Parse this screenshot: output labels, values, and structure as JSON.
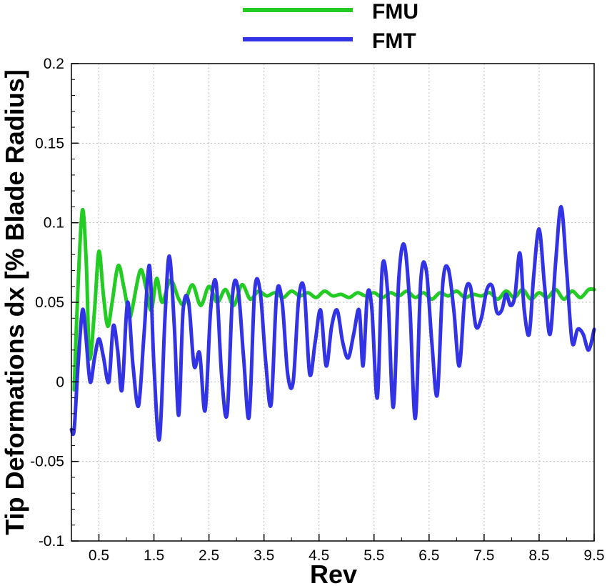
{
  "chart_data": {
    "type": "line",
    "xlabel": "Rev",
    "ylabel": "Tip Deformations dx [% Blade Radius]",
    "xlim": [
      0,
      9.5
    ],
    "ylim": [
      -0.1,
      0.2
    ],
    "x_ticks": [
      0.5,
      1.5,
      2.5,
      3.5,
      4.5,
      5.5,
      6.5,
      7.5,
      8.5,
      9.5
    ],
    "x_tick_labels": [
      "0.5",
      "1.5",
      "2.5",
      "3.5",
      "4.5",
      "5.5",
      "6.5",
      "7.5",
      "8.5",
      "9.5"
    ],
    "y_ticks": [
      -0.1,
      -0.05,
      0,
      0.05,
      0.1,
      0.15,
      0.2
    ],
    "y_tick_labels": [
      "-0.1",
      "-0.05",
      "0",
      "0.05",
      "0.1",
      "0.15",
      "0.2"
    ],
    "grid": "dotted",
    "legend_position": "top-center",
    "series": [
      {
        "name": "FMU",
        "color": "#22cc22",
        "x": [
          0.05,
          0.12,
          0.2,
          0.27,
          0.33,
          0.42,
          0.5,
          0.58,
          0.66,
          0.74,
          0.85,
          0.95,
          1.05,
          1.1,
          1.25,
          1.35,
          1.45,
          1.55,
          1.65,
          1.8,
          1.95,
          2.05,
          2.2,
          2.35,
          2.5,
          2.65,
          2.8,
          2.95,
          3.1,
          3.25,
          3.4,
          3.55,
          3.7,
          3.85,
          4.0,
          4.15,
          4.3,
          4.45,
          4.6,
          4.75,
          4.9,
          5.05,
          5.2,
          5.35,
          5.5,
          5.65,
          5.8,
          5.95,
          6.1,
          6.25,
          6.4,
          6.55,
          6.7,
          6.85,
          7.0,
          7.15,
          7.3,
          7.45,
          7.6,
          7.75,
          7.9,
          8.05,
          8.2,
          8.35,
          8.5,
          8.65,
          8.8,
          8.95,
          9.1,
          9.25,
          9.4,
          9.5
        ],
        "y": [
          -0.005,
          0.06,
          0.108,
          0.075,
          0.015,
          0.045,
          0.082,
          0.055,
          0.035,
          0.05,
          0.073,
          0.06,
          0.042,
          0.045,
          0.07,
          0.06,
          0.045,
          0.065,
          0.05,
          0.064,
          0.052,
          0.049,
          0.061,
          0.048,
          0.06,
          0.05,
          0.058,
          0.048,
          0.061,
          0.052,
          0.057,
          0.054,
          0.056,
          0.053,
          0.057,
          0.054,
          0.056,
          0.053,
          0.057,
          0.054,
          0.055,
          0.053,
          0.056,
          0.054,
          0.056,
          0.053,
          0.056,
          0.054,
          0.057,
          0.053,
          0.056,
          0.052,
          0.056,
          0.054,
          0.057,
          0.053,
          0.055,
          0.054,
          0.056,
          0.052,
          0.057,
          0.053,
          0.058,
          0.052,
          0.056,
          0.053,
          0.058,
          0.052,
          0.057,
          0.053,
          0.058,
          0.058
        ]
      },
      {
        "name": "FMT",
        "color": "#3333e6",
        "x": [
          0.0,
          0.05,
          0.12,
          0.2,
          0.26,
          0.34,
          0.42,
          0.5,
          0.58,
          0.68,
          0.76,
          0.84,
          0.92,
          1.02,
          1.12,
          1.22,
          1.32,
          1.42,
          1.5,
          1.6,
          1.7,
          1.78,
          1.87,
          1.95,
          2.03,
          2.13,
          2.23,
          2.33,
          2.43,
          2.53,
          2.63,
          2.73,
          2.83,
          2.93,
          3.03,
          3.13,
          3.23,
          3.33,
          3.43,
          3.53,
          3.63,
          3.73,
          3.83,
          3.93,
          4.03,
          4.13,
          4.23,
          4.33,
          4.43,
          4.53,
          4.63,
          4.73,
          4.83,
          4.93,
          5.03,
          5.13,
          5.23,
          5.3,
          5.38,
          5.46,
          5.56,
          5.65,
          5.75,
          5.85,
          5.95,
          6.05,
          6.15,
          6.25,
          6.35,
          6.45,
          6.55,
          6.65,
          6.75,
          6.85,
          6.95,
          7.05,
          7.15,
          7.25,
          7.35,
          7.45,
          7.55,
          7.65,
          7.73,
          7.82,
          7.9,
          7.98,
          8.06,
          8.15,
          8.23,
          8.32,
          8.4,
          8.5,
          8.6,
          8.7,
          8.8,
          8.9,
          9.0,
          9.1,
          9.2,
          9.3,
          9.4,
          9.5
        ],
        "y": [
          -0.03,
          -0.03,
          0.01,
          0.045,
          0.03,
          0.0,
          0.015,
          0.027,
          0.016,
          0.0,
          0.035,
          0.02,
          -0.005,
          0.05,
          0.01,
          -0.015,
          0.03,
          0.073,
          0.01,
          -0.036,
          0.04,
          0.079,
          0.035,
          -0.021,
          0.045,
          0.05,
          0.01,
          0.018,
          -0.018,
          0.045,
          0.062,
          0.004,
          -0.02,
          0.055,
          0.058,
          0.015,
          -0.022,
          0.057,
          0.057,
          0.013,
          -0.014,
          0.055,
          0.05,
          0.005,
          0.0,
          0.052,
          0.058,
          0.005,
          0.025,
          0.045,
          0.01,
          0.035,
          0.045,
          0.025,
          0.015,
          0.03,
          0.045,
          0.01,
          0.055,
          0.046,
          -0.01,
          0.072,
          0.055,
          -0.016,
          0.065,
          0.086,
          0.048,
          -0.023,
          0.064,
          0.07,
          0.025,
          -0.008,
          0.062,
          0.071,
          0.045,
          0.01,
          0.054,
          0.06,
          0.035,
          0.04,
          0.058,
          0.06,
          0.044,
          0.045,
          0.055,
          0.048,
          0.054,
          0.081,
          0.045,
          0.03,
          0.066,
          0.096,
          0.06,
          0.03,
          0.075,
          0.11,
          0.07,
          0.025,
          0.033,
          0.03,
          0.02,
          0.033
        ]
      }
    ]
  }
}
